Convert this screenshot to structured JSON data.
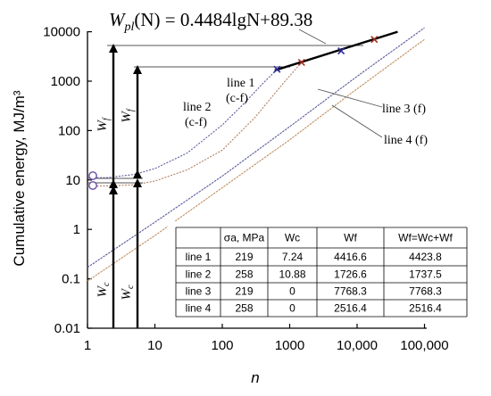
{
  "chart_data": {
    "type": "line",
    "title": "",
    "xlabel": "n",
    "ylabel": "Cumulative energy, MJ/m³",
    "x_scale": "log",
    "y_scale": "log",
    "xlim": [
      1,
      100000
    ],
    "ylim": [
      0.01,
      10000
    ],
    "x_tick_labels": [
      "1",
      "10",
      "100",
      "1000",
      "10,000",
      "100,000"
    ],
    "y_tick_labels": [
      "0.01",
      "0.1",
      "1",
      "10",
      "100",
      "1000",
      "10000"
    ],
    "grid": false,
    "equation": {
      "prefix": "W",
      "subscript": "pl",
      "body": "(N) = 0.4484lgN+89.38",
      "fit_line": {
        "x": [
          600,
          40000
        ],
        "y": [
          1650,
          10000
        ]
      }
    },
    "series": [
      {
        "name": "line 1 (c-f)",
        "color": "#5a5a9e",
        "start": {
          "x": 1,
          "y": 11
        },
        "x": [
          1,
          2,
          5,
          10,
          30,
          100,
          200,
          400,
          650
        ],
        "y": [
          11,
          11.2,
          13,
          17,
          35,
          130,
          330,
          900,
          1740
        ],
        "failure": {
          "x": 650,
          "y": 1740,
          "marker_color": "#2a2a9a"
        }
      },
      {
        "name": "line 2 (c-f)",
        "color": "#b08060",
        "start": {
          "x": 1,
          "y": 7.5
        },
        "x": [
          1,
          2,
          5,
          10,
          30,
          100,
          300,
          800,
          1500
        ],
        "y": [
          7.5,
          7.6,
          8,
          9.5,
          16,
          40,
          180,
          900,
          2400
        ],
        "failure": {
          "x": 1500,
          "y": 2400,
          "marker_color": "#a03020"
        }
      },
      {
        "name": "line 3 (f)",
        "color": "#5a5a9e",
        "x": [
          1,
          10,
          100,
          1000,
          10000,
          100000
        ],
        "y": [
          0.17,
          1.4,
          12,
          120,
          1250,
          12000
        ],
        "failure": {
          "x": 5800,
          "y": 4100,
          "marker_color": "#2a2a9a"
        }
      },
      {
        "name": "line 4 (f)",
        "color": "#c09060",
        "x": [
          1,
          10,
          100,
          1000,
          10000,
          100000
        ],
        "y": [
          0.09,
          0.75,
          7,
          65,
          700,
          7000
        ],
        "failure": {
          "x": 18000,
          "y": 7000,
          "marker_color": "#a03020"
        }
      }
    ],
    "annotations": {
      "line1": "line 1",
      "line1_sub": "(c-f)",
      "line2": "line 2",
      "line2_sub": "(c-f)",
      "line3": "line 3 (f)",
      "line4": "line 4 (f)",
      "Wf": "W",
      "Wf_sub": "f",
      "Wc": "W",
      "Wc_sub": "c"
    },
    "table": {
      "header": [
        "",
        "σa, MPa",
        "Wc",
        "Wf",
        "Wf=Wc+Wf"
      ],
      "rows": [
        [
          "line 1",
          "219",
          "7.24",
          "4416.6",
          "4423.8"
        ],
        [
          "line 2",
          "258",
          "10.88",
          "1726.6",
          "1737.5"
        ],
        [
          "line 3",
          "219",
          "0",
          "7768.3",
          "7768.3"
        ],
        [
          "line 4",
          "258",
          "0",
          "2516.4",
          "2516.4"
        ]
      ]
    }
  }
}
